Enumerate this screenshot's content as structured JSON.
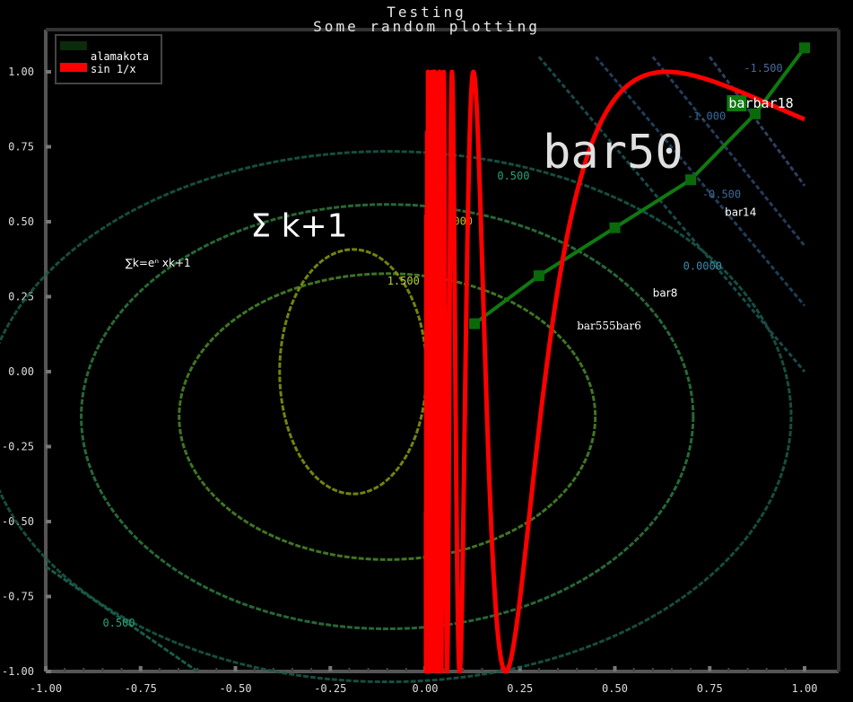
{
  "title": "Testing",
  "subtitle": "Some random plotting",
  "legend": [
    {
      "label": "alamakota",
      "color": "#0b2b0b"
    },
    {
      "label": "sin 1/x",
      "color": "#ff0000"
    }
  ],
  "chart_data": {
    "type": "line",
    "title": "Testing",
    "subtitle": "Some random plotting",
    "xlim": [
      -1.0,
      1.05
    ],
    "ylim": [
      -1.0,
      1.08
    ],
    "xticks": [
      "-1.00",
      "-0.75",
      "-0.50",
      "-0.25",
      "0.00",
      "0.25",
      "0.50",
      "0.75",
      "1.00"
    ],
    "yticks": [
      "-1.00",
      "-0.75",
      "-0.50",
      "-0.25",
      "0.00",
      "0.25",
      "0.50",
      "0.75",
      "1.00"
    ],
    "legend_position": "top-left",
    "series": [
      {
        "name": "alamakota",
        "color": "#0f7a0f",
        "x": [
          0.13,
          0.3,
          0.5,
          0.7,
          0.87,
          1.0
        ],
        "y": [
          0.16,
          0.32,
          0.48,
          0.64,
          0.86,
          1.08
        ]
      },
      {
        "name": "sin 1/x",
        "color": "#ff0000",
        "x_range": [
          0.0,
          1.0
        ],
        "function": "sin(1/x)"
      }
    ],
    "contour_labels": [
      {
        "text": "0.500",
        "x": 0.19,
        "y": 0.64
      },
      {
        "text": "1.000",
        "x": 0.04,
        "y": 0.49
      },
      {
        "text": "1.500",
        "x": -0.1,
        "y": 0.29
      },
      {
        "text": "0.500",
        "x": -0.85,
        "y": -0.85
      },
      {
        "text": "-0.500",
        "x": 0.73,
        "y": 0.58
      },
      {
        "text": "-1.000",
        "x": 0.69,
        "y": 0.84
      },
      {
        "text": "0.0000",
        "x": 0.68,
        "y": 0.34
      },
      {
        "text": "-1.500",
        "x": 0.84,
        "y": 1.0
      }
    ],
    "annotations": [
      {
        "text": "bar50",
        "x": 0.31,
        "y": 0.68
      },
      {
        "text": "barbar18",
        "x": 0.8,
        "y": 0.88
      },
      {
        "text": "bar14",
        "x": 0.79,
        "y": 0.52
      },
      {
        "text": "bar8",
        "x": 0.6,
        "y": 0.25
      },
      {
        "text": "bar555bar6",
        "x": 0.4,
        "y": 0.14
      },
      {
        "text": "∑k=eⁿ xk+1",
        "x": -0.79,
        "y": 0.35
      },
      {
        "text": "Σ k+1",
        "x": -0.46,
        "y": 0.45
      }
    ]
  }
}
